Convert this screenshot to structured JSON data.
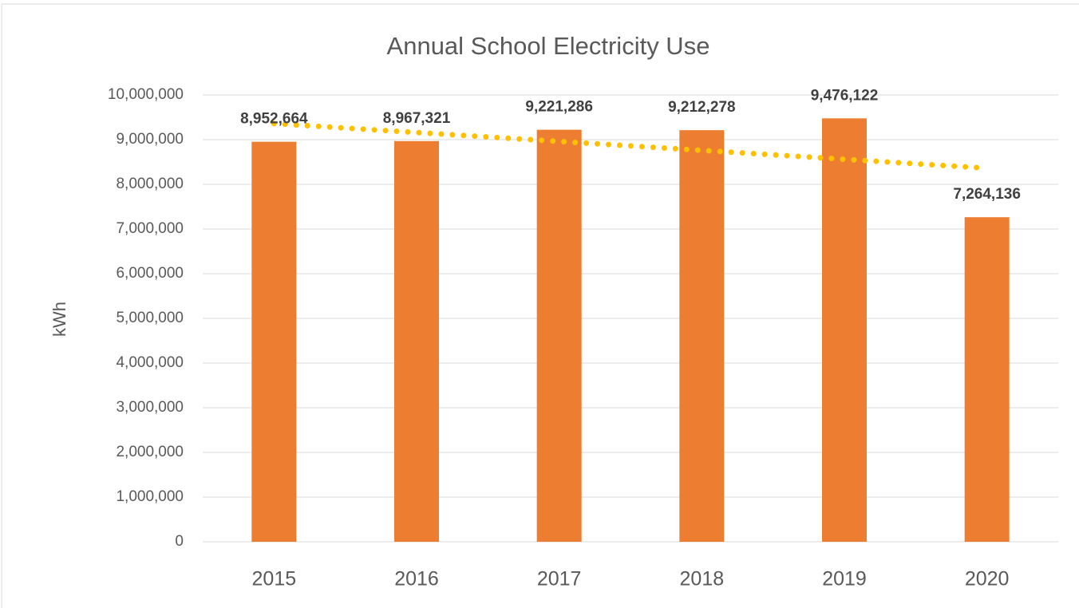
{
  "chart_data": {
    "type": "bar",
    "title": "Annual School Electricity Use",
    "y_label": "kWh",
    "categories": [
      "2015",
      "2016",
      "2017",
      "2018",
      "2019",
      "2020"
    ],
    "values": [
      8952664,
      8967321,
      9221286,
      9212278,
      9476122,
      7264136
    ],
    "value_labels": [
      "8,952,664",
      "8,967,321",
      "9,221,286",
      "9,212,278",
      "9,476,122",
      "7,264,136"
    ],
    "color": "#ed7d31",
    "trendline": {
      "color": "#ffc000",
      "values": [
        9360000,
        8360000
      ]
    },
    "ylim": [
      0,
      10000000
    ],
    "yticks": [
      0,
      {
        "value": 1000000,
        "label": "1,000,000"
      },
      {
        "value": 2000000,
        "label": "2,000,000"
      },
      {
        "value": 3000000,
        "label": "3,000,000"
      },
      {
        "value": 4000000,
        "label": "4,000,000"
      },
      {
        "value": 5000000,
        "label": "5,000,000"
      },
      {
        "value": 6000000,
        "label": "6,000,000"
      },
      {
        "value": 7000000,
        "label": "7,000,000"
      },
      {
        "value": 8000000,
        "label": "8,000,000"
      },
      {
        "value": 9000000,
        "label": "9,000,000"
      },
      {
        "value": 10000000,
        "label": "10,000,000"
      }
    ],
    "grid": true
  }
}
